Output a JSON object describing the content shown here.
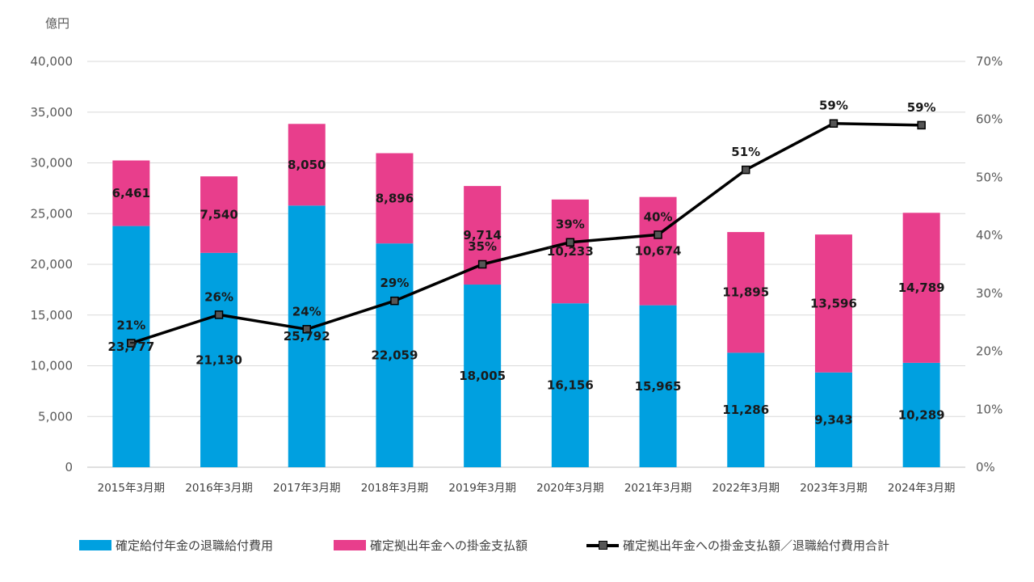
{
  "chart_data": {
    "type": "bar",
    "stacked": true,
    "categories": [
      "2015年3月期",
      "2016年3月期",
      "2017年3月期",
      "2018年3月期",
      "2019年3月期",
      "2020年3月期",
      "2021年3月期",
      "2022年3月期",
      "2023年3月期",
      "2024年3月期"
    ],
    "series": [
      {
        "name": "確定給付年金の退職給付費用",
        "type": "bar",
        "color": "#00a0e0",
        "values": [
          23777,
          21130,
          25792,
          22059,
          18005,
          16156,
          15965,
          11286,
          9343,
          10289
        ],
        "labels": [
          "23,777",
          "21,130",
          "25,792",
          "22,059",
          "18,005",
          "16,156",
          "15,965",
          "11,286",
          "9,343",
          "10,289"
        ]
      },
      {
        "name": "確定拠出年金への掛金支払額",
        "type": "bar",
        "color": "#e83e8c",
        "values": [
          6461,
          7540,
          8050,
          8896,
          9714,
          10233,
          10674,
          11895,
          13596,
          14789
        ],
        "labels": [
          "6,461",
          "7,540",
          "8,050",
          "8,896",
          "9,714",
          "10,233",
          "10,674",
          "11,895",
          "13,596",
          "14,789"
        ]
      },
      {
        "name": "確定拠出年金への掛金支払額／退職給付費用合計",
        "type": "line",
        "axis": "right",
        "color": "#000000",
        "values": [
          21.4,
          26.3,
          23.8,
          28.7,
          35.0,
          38.8,
          40.1,
          51.3,
          59.3,
          59.0
        ],
        "labels": [
          "21%",
          "26%",
          "24%",
          "29%",
          "35%",
          "39%",
          "40%",
          "51%",
          "59%",
          "59%"
        ]
      }
    ],
    "y_unit": "億円",
    "ylim": [
      0,
      40000
    ],
    "yticks": [
      "0",
      "5,000",
      "10,000",
      "15,000",
      "20,000",
      "25,000",
      "30,000",
      "35,000",
      "40,000"
    ],
    "y2lim": [
      0,
      70
    ],
    "y2ticks": [
      "0%",
      "10%",
      "20%",
      "30%",
      "40%",
      "50%",
      "60%",
      "70%"
    ],
    "grid": true,
    "legend": "bottom"
  }
}
